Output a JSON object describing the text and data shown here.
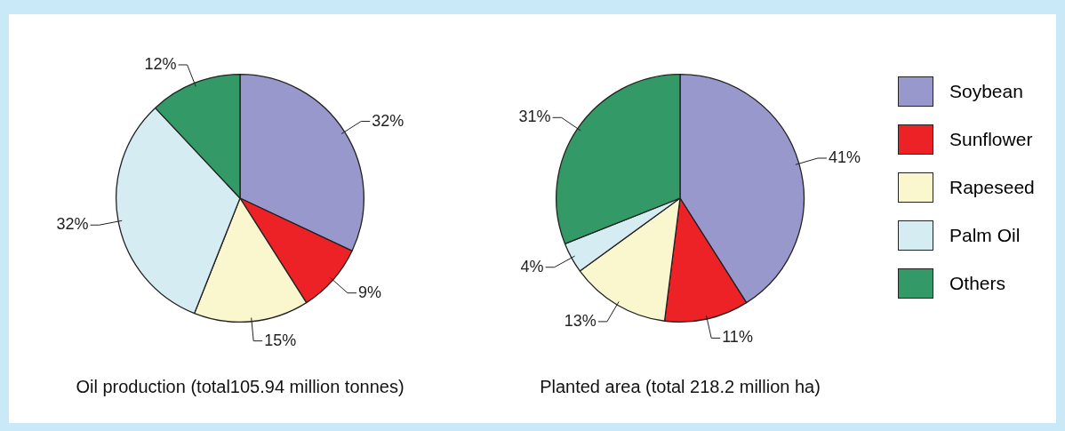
{
  "chart_data": [
    {
      "type": "pie",
      "title": "Oil production (total105.94 million tonnes)",
      "categories": [
        null,
        null,
        null,
        null,
        null
      ],
      "values": [
        32,
        9,
        15,
        32,
        12
      ],
      "colors": [
        "#9898cc",
        "#ec2227",
        "#faf7cf",
        "#d5ecf3",
        "#339966"
      ],
      "value_labels": [
        "32%",
        "9%",
        "15%",
        "32%",
        "12%"
      ]
    },
    {
      "type": "pie",
      "title": "Planted area (total 218.2 million ha)",
      "categories": [
        "Soybean",
        "Sunflower",
        "Rapeseed",
        "Palm Oil",
        "Others"
      ],
      "values": [
        41,
        11,
        13,
        4,
        31
      ],
      "colors": [
        "#9898cc",
        "#ec2227",
        "#faf7cf",
        "#d5ecf3",
        "#339966"
      ],
      "value_labels": [
        "41%",
        "11%",
        "13%",
        "4%",
        "31%"
      ],
      "legend": "right"
    }
  ]
}
